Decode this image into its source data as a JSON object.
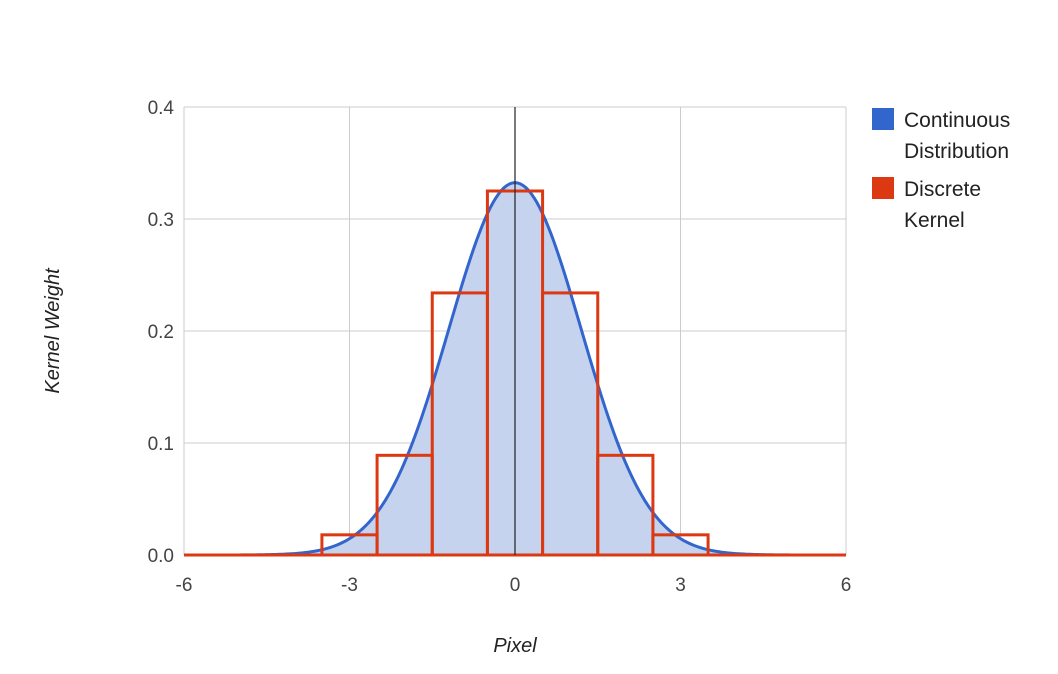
{
  "chart_data": {
    "type": "area",
    "title": "",
    "xlabel": "Pixel",
    "ylabel": "Kernel Weight",
    "xlim": [
      -6,
      6
    ],
    "ylim": [
      0,
      0.4
    ],
    "x_ticks": [
      -6,
      -3,
      0,
      3,
      6
    ],
    "x_tick_labels": [
      "-6",
      "-3",
      "0",
      "3",
      "6"
    ],
    "y_ticks": [
      0,
      0.1,
      0.2,
      0.3,
      0.4
    ],
    "y_tick_labels": [
      "0.0",
      "0.1",
      "0.2",
      "0.3",
      "0.4"
    ],
    "grid": true,
    "legend_position": "right",
    "series": [
      {
        "name": "Continuous Distribution",
        "name_lines": [
          "Continuous",
          "Distribution"
        ],
        "kind": "area",
        "color": "#3366cc",
        "fill_color": "#c5d3ee",
        "distribution": "normal",
        "mean": 0,
        "sigma": 1.2
      },
      {
        "name": "Discrete Kernel",
        "name_lines": [
          "Discrete",
          "Kernel"
        ],
        "kind": "stepped",
        "color": "#dc3912",
        "x": [
          -6,
          -5,
          -4,
          -3,
          -2,
          -1,
          0,
          1,
          2,
          3,
          4,
          5,
          6
        ],
        "values": [
          0,
          0,
          0,
          0.018,
          0.089,
          0.234,
          0.325,
          0.234,
          0.089,
          0.018,
          0,
          0,
          0
        ]
      }
    ]
  }
}
